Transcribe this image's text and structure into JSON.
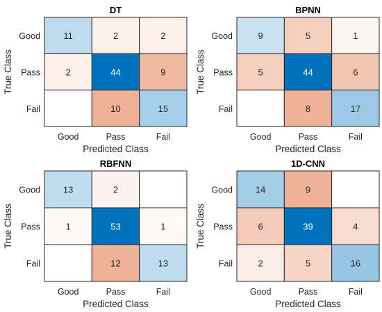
{
  "chart_data": [
    {
      "type": "heatmap",
      "title": "DT",
      "xlabel": "Predicted Class",
      "ylabel": "True Class",
      "row_labels": [
        "Good",
        "Pass",
        "Fail"
      ],
      "col_labels": [
        "Good",
        "Pass",
        "Fail"
      ],
      "values": [
        [
          11,
          2,
          2
        ],
        [
          2,
          44,
          9
        ],
        [
          null,
          10,
          15
        ]
      ]
    },
    {
      "type": "heatmap",
      "title": "BPNN",
      "xlabel": "Predicted Class",
      "ylabel": "True Class",
      "row_labels": [
        "Good",
        "Pass",
        "Fail"
      ],
      "col_labels": [
        "Good",
        "Pass",
        "Fail"
      ],
      "values": [
        [
          9,
          5,
          1
        ],
        [
          5,
          44,
          6
        ],
        [
          null,
          8,
          17
        ]
      ]
    },
    {
      "type": "heatmap",
      "title": "RBFNN",
      "xlabel": "Predicted Class",
      "ylabel": "True Class",
      "row_labels": [
        "Good",
        "Pass",
        "Fail"
      ],
      "col_labels": [
        "Good",
        "Pass",
        "Fail"
      ],
      "values": [
        [
          13,
          2,
          null
        ],
        [
          1,
          53,
          1
        ],
        [
          null,
          12,
          13
        ]
      ]
    },
    {
      "type": "heatmap",
      "title": "1D-CNN",
      "xlabel": "Predicted Class",
      "ylabel": "True Class",
      "row_labels": [
        "Good",
        "Pass",
        "Fail"
      ],
      "col_labels": [
        "Good",
        "Pass",
        "Fail"
      ],
      "values": [
        [
          14,
          9,
          null
        ],
        [
          6,
          39,
          4
        ],
        [
          2,
          5,
          16
        ]
      ]
    }
  ],
  "colors": {
    "diagonal_max": "#0072BD",
    "offdiagonal_max": "#D95319",
    "empty_cell": "#ffffff",
    "grid": "#262626",
    "label_dark": "#262626",
    "label_light": "#ffffff"
  }
}
